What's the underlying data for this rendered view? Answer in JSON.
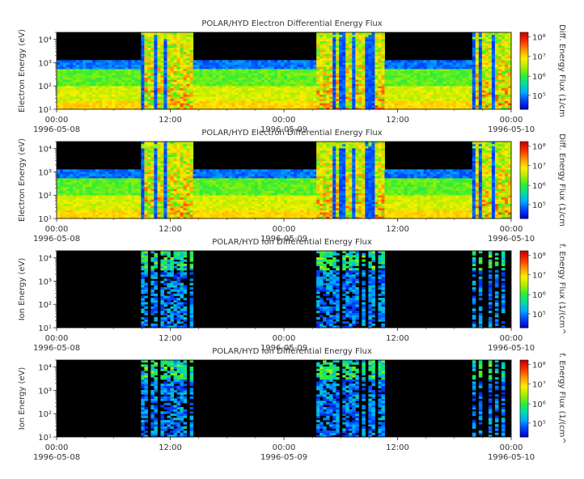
{
  "chart_data": [
    {
      "type": "heatmap",
      "title": "POLAR/HYD  Electron Differential Energy Flux",
      "ylabel": "Electron Energy (eV)",
      "colorbar_label": "Diff. Energy Flux (1/cm",
      "yscale": "log",
      "ylim": [
        10,
        20000
      ],
      "x_ticks": [
        "00:00",
        "12:00",
        "00:00",
        "12:00",
        "00:00"
      ],
      "x_dates": [
        "1996-05-08",
        "",
        "1996-05-09",
        "",
        "1996-05-10"
      ],
      "y_ticks": [
        "10¹",
        "10²",
        "10³",
        "10⁴"
      ],
      "cbar_ticks": [
        "10⁵",
        "10⁶",
        "10⁷",
        "10⁸"
      ],
      "xlim_hours": [
        0,
        48
      ],
      "active_intervals_hours": [
        [
          9,
          14.5
        ],
        [
          27.5,
          34.5
        ],
        [
          44,
          48
        ]
      ]
    },
    {
      "type": "heatmap",
      "title": "POLAR/HYD  Electron Differential Energy Flux",
      "ylabel": "Electron Energy (eV)",
      "colorbar_label": "Diff. Energy Flux (1/cm",
      "yscale": "log",
      "ylim": [
        10,
        20000
      ],
      "x_ticks": [
        "00:00",
        "12:00",
        "00:00",
        "12:00",
        "00:00"
      ],
      "x_dates": [
        "1996-05-08",
        "",
        "1996-05-09",
        "",
        "1996-05-10"
      ],
      "y_ticks": [
        "10¹",
        "10²",
        "10³",
        "10⁴"
      ],
      "cbar_ticks": [
        "10⁵",
        "10⁶",
        "10⁷",
        "10⁸"
      ],
      "xlim_hours": [
        0,
        48
      ],
      "active_intervals_hours": [
        [
          9,
          14.5
        ],
        [
          27.5,
          34.5
        ],
        [
          44,
          48
        ]
      ]
    },
    {
      "type": "heatmap",
      "title": "POLAR/HYD  Ion Differential Energy Flux",
      "ylabel": "Ion Energy (eV)",
      "colorbar_label": "f. Energy Flux (1/(cm^",
      "yscale": "log",
      "ylim": [
        10,
        20000
      ],
      "x_ticks": [
        "00:00",
        "12:00",
        "00:00",
        "12:00",
        "00:00"
      ],
      "x_dates": [
        "1996-05-08",
        "",
        "1996-05-09",
        "",
        "1996-05-10"
      ],
      "y_ticks": [
        "10¹",
        "10²",
        "10³",
        "10⁴"
      ],
      "cbar_ticks": [
        "10⁵",
        "10⁶",
        "10⁷",
        "10⁸"
      ],
      "xlim_hours": [
        0,
        48
      ],
      "active_intervals_hours": [
        [
          9,
          15
        ],
        [
          27.5,
          34.5
        ],
        [
          44,
          48
        ]
      ]
    },
    {
      "type": "heatmap",
      "title": "POLAR/HYD  Ion Differential Energy Flux",
      "ylabel": "Ion Energy (eV)",
      "colorbar_label": "f. Energy Flux (1/(cm^",
      "yscale": "log",
      "ylim": [
        10,
        20000
      ],
      "x_ticks": [
        "00:00",
        "12:00",
        "00:00",
        "12:00",
        "00:00"
      ],
      "x_dates": [
        "1996-05-08",
        "",
        "1996-05-09",
        "",
        "1996-05-10"
      ],
      "y_ticks": [
        "10¹",
        "10²",
        "10³",
        "10⁴"
      ],
      "cbar_ticks": [
        "10⁵",
        "10⁶",
        "10⁷",
        "10⁸"
      ],
      "xlim_hours": [
        0,
        48
      ],
      "active_intervals_hours": [
        [
          9,
          15
        ],
        [
          27.5,
          34.5
        ],
        [
          44,
          48
        ]
      ]
    }
  ],
  "colors": {
    "background": "#ffffff",
    "plot_background": "#000000",
    "colormap": [
      "#0000cc",
      "#0044ff",
      "#00aaff",
      "#00e0a0",
      "#33ee33",
      "#aaee00",
      "#ffee00",
      "#ff9900",
      "#ff3300",
      "#cc0000"
    ]
  }
}
